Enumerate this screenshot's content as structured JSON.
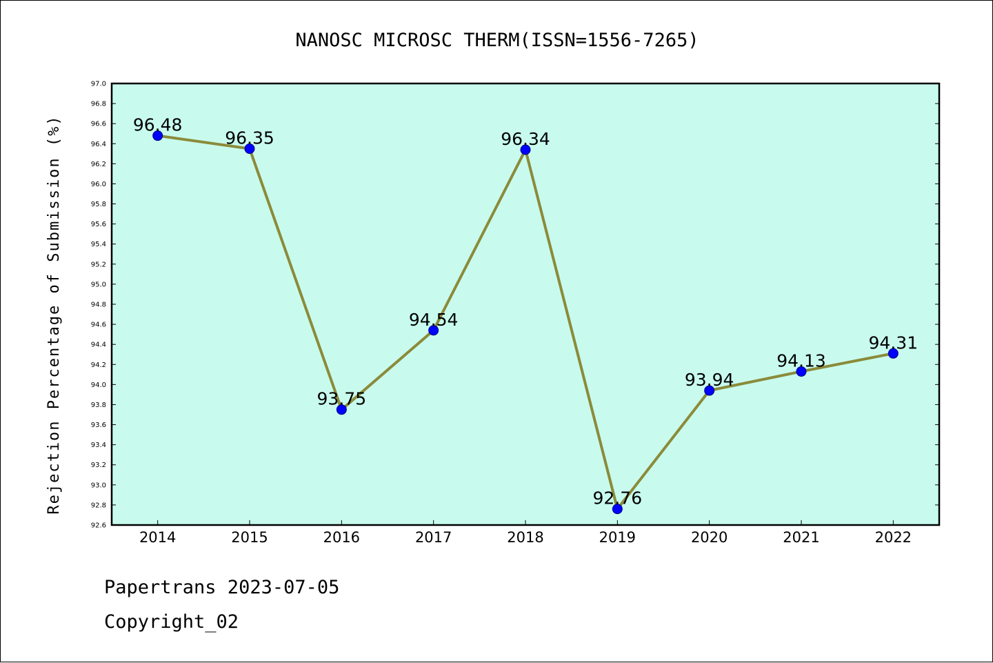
{
  "chart_data": {
    "type": "line",
    "title": "NANOSC MICROSC THERM(ISSN=1556-7265)",
    "ylabel": "Rejection Percentage of Submission (%)",
    "xlabel": "",
    "categories": [
      "2014",
      "2015",
      "2016",
      "2017",
      "2018",
      "2019",
      "2020",
      "2021",
      "2022"
    ],
    "values": [
      96.48,
      96.35,
      93.75,
      94.54,
      96.34,
      92.76,
      93.94,
      94.13,
      94.31
    ],
    "data_labels": [
      "96.48",
      "96.35",
      "93.75",
      "94.54",
      "96.34",
      "92.76",
      "93.94",
      "94.13",
      "94.31"
    ],
    "ylim": [
      92.6,
      97.0
    ],
    "yticks": [
      "92.6",
      "92.8",
      "93.0",
      "93.2",
      "93.4",
      "93.6",
      "93.8",
      "94.0",
      "94.2",
      "94.4",
      "94.6",
      "94.8",
      "95.0",
      "95.2",
      "95.4",
      "95.6",
      "95.8",
      "96.0",
      "96.2",
      "96.4",
      "96.6",
      "96.8",
      "97.0"
    ],
    "grid": false,
    "colors": {
      "background": "#c8fbee",
      "line": "#8b8b3a",
      "marker": "#0000ff"
    }
  },
  "footer": {
    "line1": "Papertrans 2023-07-05",
    "line2": "Copyright_02"
  }
}
